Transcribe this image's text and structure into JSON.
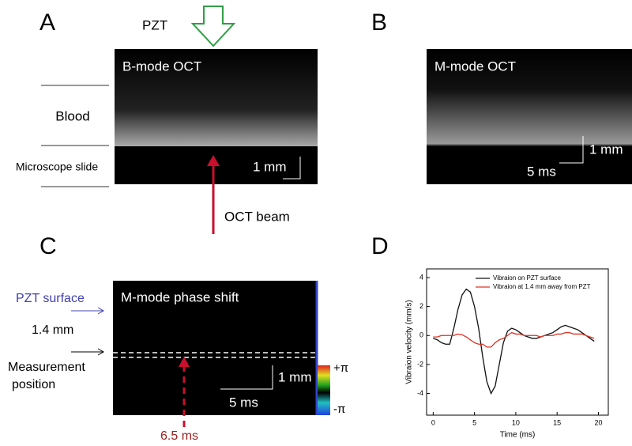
{
  "figure": {
    "a": {
      "label": "A",
      "pzt": "PZT",
      "image_title": "B-mode OCT",
      "blood": "Blood",
      "slide": "Microscope slide",
      "scale": "1 mm",
      "beam": "OCT beam"
    },
    "b": {
      "label": "B",
      "image_title": "M-mode OCT",
      "scale_y": "1 mm",
      "scale_x": "5 ms"
    },
    "c": {
      "label": "C",
      "image_title": "M-mode phase shift",
      "surface": "PZT surface",
      "distance": "1.4 mm",
      "measurement": [
        "Measurement",
        "position"
      ],
      "scale_y": "1 mm",
      "scale_x": "5 ms",
      "cbar_top": "+π",
      "cbar_bottom": "-π",
      "time": "6.5 ms"
    },
    "d": {
      "label": "D"
    }
  },
  "chart_data": {
    "type": "line",
    "xlabel": "Time (ms)",
    "ylabel": "Vibraion velocity (mm/s)",
    "xlim": [
      -0.8,
      21.2
    ],
    "ylim": [
      -5.5,
      4.6
    ],
    "xticks": [
      0,
      5,
      10,
      15,
      20
    ],
    "yticks": [
      -4,
      -2,
      0,
      2,
      4
    ],
    "x": [
      0,
      0.5,
      1,
      1.5,
      2,
      2.5,
      3,
      3.5,
      4,
      4.5,
      5,
      5.5,
      6,
      6.5,
      7,
      7.5,
      8,
      8.5,
      9,
      9.5,
      10,
      10.5,
      11,
      11.5,
      12,
      12.5,
      13,
      13.5,
      14,
      14.5,
      15,
      15.5,
      16,
      16.5,
      17,
      17.5,
      18,
      18.5,
      19,
      19.5
    ],
    "series": [
      {
        "name": "Vibraion on PZT surface",
        "color": "#111111",
        "values": [
          -0.2,
          -0.3,
          -0.5,
          -0.6,
          -0.6,
          0.5,
          1.8,
          2.8,
          3.2,
          3.0,
          2.0,
          0.5,
          -1.5,
          -3.2,
          -4.0,
          -3.5,
          -2.0,
          -0.5,
          0.3,
          0.5,
          0.4,
          0.2,
          0,
          -0.1,
          -0.2,
          -0.2,
          -0.1,
          0,
          0.1,
          0.2,
          0.4,
          0.6,
          0.7,
          0.6,
          0.5,
          0.4,
          0.2,
          0,
          -0.2,
          -0.4
        ]
      },
      {
        "name": "Vibraion at 1.4 mm away from PZT",
        "color": "#e03020",
        "values": [
          -0.1,
          -0.1,
          0,
          0,
          0,
          0,
          0.1,
          0.05,
          -0.1,
          -0.3,
          -0.5,
          -0.6,
          -0.6,
          -0.8,
          -0.8,
          -0.5,
          -0.3,
          -0.2,
          0,
          0.2,
          0.1,
          0.1,
          0,
          0,
          0,
          0,
          -0.1,
          0,
          0,
          0,
          0.1,
          0.1,
          0.2,
          0.2,
          0.1,
          0.1,
          0.1,
          0,
          -0.1,
          -0.2
        ]
      }
    ]
  }
}
